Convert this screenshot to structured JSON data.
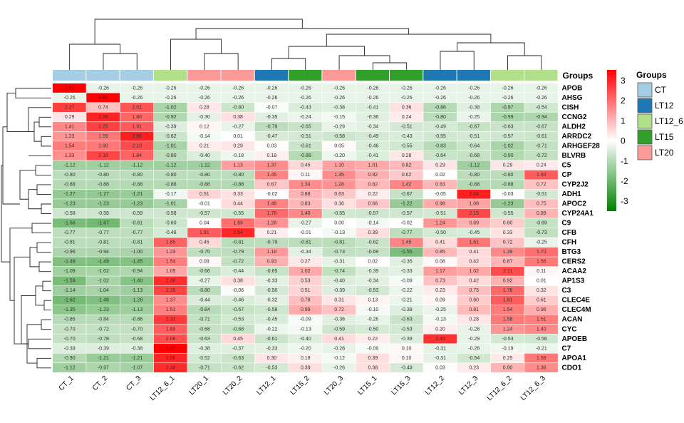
{
  "chart_data": {
    "type": "heatmap",
    "columns": [
      "CT_1",
      "CT_2",
      "CT_3",
      "LT12_6_1",
      "LT20_1",
      "LT20_2",
      "LT12_1",
      "LT15_2",
      "LT20_3",
      "LT15_1",
      "LT15_3",
      "LT12_2",
      "LT12_3",
      "LT12_6_2",
      "LT12_6_3"
    ],
    "column_groups": [
      "CT",
      "CT",
      "CT",
      "LT12_6",
      "LT20",
      "LT20",
      "LT12",
      "LT15",
      "LT20",
      "LT15",
      "LT15",
      "LT12",
      "LT12",
      "LT12_6",
      "LT12_6"
    ],
    "rows": [
      "APOB",
      "AHSG",
      "CISH",
      "CCNG2",
      "ALDH2",
      "ARRDC2",
      "ARHGEF28",
      "BLVRB",
      "C5",
      "CP",
      "CYP2J2",
      "ADH1",
      "APOC2",
      "CYP24A1",
      "C9",
      "CFB",
      "CFH",
      "BTG3",
      "CERS2",
      "ACAA2",
      "AP1S3",
      "C3",
      "CLEC4E",
      "CLEC4M",
      "ACAN",
      "CYC",
      "APOEB",
      "C7",
      "APOA1",
      "CDO1"
    ],
    "values": [
      [
        3.81,
        -0.26,
        -0.26,
        -0.26,
        -0.26,
        -0.26,
        -0.26,
        -0.26,
        -0.26,
        -0.26,
        -0.26,
        -0.26,
        -0.26,
        -0.26,
        -0.26
      ],
      [
        -0.26,
        3.81,
        -0.26,
        -0.26,
        -0.26,
        -0.26,
        -0.26,
        -0.26,
        -0.26,
        -0.26,
        -0.26,
        -0.26,
        -0.26,
        -0.26,
        -0.26
      ],
      [
        2.27,
        0.74,
        2.01,
        -1.02,
        0.28,
        -0.6,
        -0.07,
        -0.43,
        -0.38,
        -0.41,
        0.36,
        -0.86,
        -0.38,
        -0.97,
        -0.54
      ],
      [
        0.29,
        2.58,
        1.8,
        -0.92,
        -0.3,
        0.38,
        -0.35,
        -0.24,
        -0.15,
        -0.36,
        0.24,
        -0.8,
        -0.25,
        -0.99,
        -0.94
      ],
      [
        1.41,
        2.25,
        1.91,
        -0.39,
        0.12,
        -0.27,
        -0.79,
        -0.65,
        -0.29,
        -0.34,
        -0.51,
        -0.49,
        -0.67,
        -0.63,
        -0.67
      ],
      [
        1.23,
        1.59,
        2.66,
        -0.62,
        -0.14,
        0.01,
        -0.47,
        -0.51,
        -0.58,
        -0.49,
        -0.43,
        -0.55,
        -0.51,
        -0.57,
        -0.61
      ],
      [
        1.54,
        1.6,
        2.1,
        -1.01,
        0.21,
        0.29,
        0.03,
        -0.61,
        0.05,
        -0.46,
        -0.55,
        -0.83,
        -0.64,
        -1.02,
        -0.71
      ],
      [
        1.33,
        2.18,
        1.84,
        -0.8,
        -0.4,
        -0.18,
        0.18,
        -0.88,
        -0.2,
        -0.41,
        0.28,
        -0.64,
        -0.68,
        -0.9,
        -0.72
      ],
      [
        -1.12,
        -1.12,
        -1.12,
        -1.12,
        -1.12,
        1.13,
        1.37,
        0.45,
        1.1,
        1.01,
        0.82,
        0.29,
        -1.12,
        0.29,
        0.24
      ],
      [
        -0.8,
        -0.8,
        -0.8,
        -0.8,
        -0.8,
        -0.8,
        1.45,
        0.11,
        1.35,
        0.92,
        0.62,
        0.02,
        -0.8,
        -0.8,
        1.92
      ],
      [
        -0.88,
        -0.88,
        -0.88,
        -0.88,
        -0.88,
        -0.88,
        0.67,
        1.34,
        1.28,
        0.82,
        1.42,
        0.83,
        -0.88,
        -0.88,
        0.72
      ],
      [
        -1.27,
        -1.27,
        -1.21,
        -0.17,
        0.51,
        0.33,
        -0.02,
        0.88,
        0.63,
        0.22,
        -0.67,
        -0.05,
        2.64,
        -0.03,
        -0.51
      ],
      [
        -1.23,
        -1.23,
        -1.23,
        -1.01,
        -0.01,
        0.44,
        1.46,
        0.83,
        0.36,
        0.66,
        -1.22,
        0.98,
        1.08,
        -1.23,
        0.75
      ],
      [
        -0.58,
        -0.58,
        -0.59,
        -0.58,
        -0.57,
        -0.55,
        1.76,
        1.4,
        -0.55,
        -0.57,
        -0.57,
        -0.51,
        2.15,
        -0.55,
        0.89
      ],
      [
        -1.56,
        -1.67,
        -0.81,
        -0.6,
        0.04,
        1.69,
        1.28,
        -0.27,
        -0.0,
        -0.14,
        -0.02,
        1.24,
        0.89,
        0.6,
        -0.69
      ],
      [
        -0.77,
        -0.77,
        -0.77,
        -0.48,
        1.91,
        2.54,
        0.21,
        -0.01,
        -0.13,
        0.39,
        -0.77,
        -0.5,
        -0.45,
        0.33,
        -0.73
      ],
      [
        -0.81,
        -0.81,
        -0.81,
        1.85,
        0.46,
        -0.81,
        -0.79,
        -0.81,
        -0.81,
        -0.62,
        1.45,
        0.41,
        1.61,
        0.72,
        -0.25
      ],
      [
        -0.96,
        -0.94,
        -1.0,
        1.23,
        -0.75,
        -0.79,
        1.18,
        -0.34,
        -0.73,
        -0.69,
        -1.55,
        0.85,
        0.41,
        1.39,
        1.7
      ],
      [
        -1.48,
        -1.49,
        -1.45,
        1.54,
        0.09,
        -0.72,
        0.93,
        0.27,
        -0.31,
        0.02,
        -0.35,
        0.08,
        0.42,
        0.87,
        1.58
      ],
      [
        -1.09,
        -1.02,
        -0.94,
        1.05,
        -0.66,
        -0.44,
        -0.65,
        1.02,
        -0.74,
        -0.39,
        -0.33,
        1.17,
        1.02,
        2.11,
        0.11
      ],
      [
        -1.59,
        -1.02,
        -1.4,
        2.46,
        -0.27,
        0.38,
        -0.33,
        0.53,
        -0.4,
        -0.34,
        -0.09,
        0.73,
        0.42,
        0.92,
        0.01
      ],
      [
        -1.14,
        -1.04,
        -1.13,
        2.2,
        -0.8,
        -0.06,
        -0.5,
        0.51,
        -0.39,
        -0.53,
        -0.22,
        0.23,
        0.75,
        1.78,
        0.32
      ],
      [
        -1.62,
        -1.49,
        -1.28,
        1.37,
        -0.44,
        -0.46,
        -0.32,
        0.78,
        0.31,
        0.13,
        -0.21,
        0.09,
        0.6,
        1.91,
        0.61
      ],
      [
        -1.35,
        -1.23,
        -1.13,
        1.51,
        -0.84,
        -0.67,
        -0.58,
        0.99,
        0.72,
        -0.1,
        -0.38,
        -0.25,
        0.81,
        1.54,
        0.96
      ],
      [
        -0.85,
        -0.84,
        -0.86,
        2.32,
        -0.71,
        -0.53,
        -0.45,
        -0.09,
        -0.36,
        -0.26,
        -0.63,
        -0.13,
        0.28,
        1.58,
        1.51
      ],
      [
        -0.7,
        -0.72,
        -0.7,
        1.89,
        -0.68,
        -0.68,
        -0.22,
        -0.13,
        -0.59,
        -0.5,
        -0.53,
        0.2,
        -0.28,
        1.24,
        1.4
      ],
      [
        -0.7,
        -0.78,
        -0.68,
        2.08,
        -0.63,
        0.45,
        -0.61,
        -0.4,
        0.41,
        0.22,
        -0.39,
        2.43,
        -0.29,
        -0.53,
        -0.56
      ],
      [
        -0.39,
        -0.39,
        -0.38,
        3.67,
        -0.38,
        -0.37,
        -0.33,
        -0.2,
        -0.28,
        -0.09,
        0.1,
        -0.31,
        -0.26,
        -0.19,
        -0.21
      ],
      [
        -0.9,
        -1.21,
        -1.21,
        2.56,
        -0.52,
        -0.63,
        0.3,
        0.18,
        -0.12,
        0.39,
        0.1,
        -0.31,
        -0.54,
        0.25,
        1.58
      ],
      [
        -1.12,
        -0.97,
        -1.07,
        2.48,
        -0.71,
        -0.62,
        -0.53,
        0.39,
        -0.26,
        0.38,
        -0.49,
        0.03,
        0.23,
        0.9,
        1.36
      ]
    ],
    "color_scale": {
      "min": -3,
      "mid": 0,
      "max": 3,
      "low": "#008000",
      "midColor": "#ffffff",
      "high": "#ff0000",
      "ticks": [
        "3",
        "2",
        "1",
        "0",
        "-1",
        "-2",
        "-3"
      ]
    },
    "group_annotation_label": "Groups",
    "groups_legend": {
      "title": "Groups",
      "entries": [
        {
          "name": "CT",
          "color": "#a6cee3"
        },
        {
          "name": "LT12",
          "color": "#1f78b4"
        },
        {
          "name": "LT12_6",
          "color": "#b2df8a"
        },
        {
          "name": "LT15",
          "color": "#33a02c"
        },
        {
          "name": "LT20",
          "color": "#fb9a99"
        }
      ]
    }
  }
}
